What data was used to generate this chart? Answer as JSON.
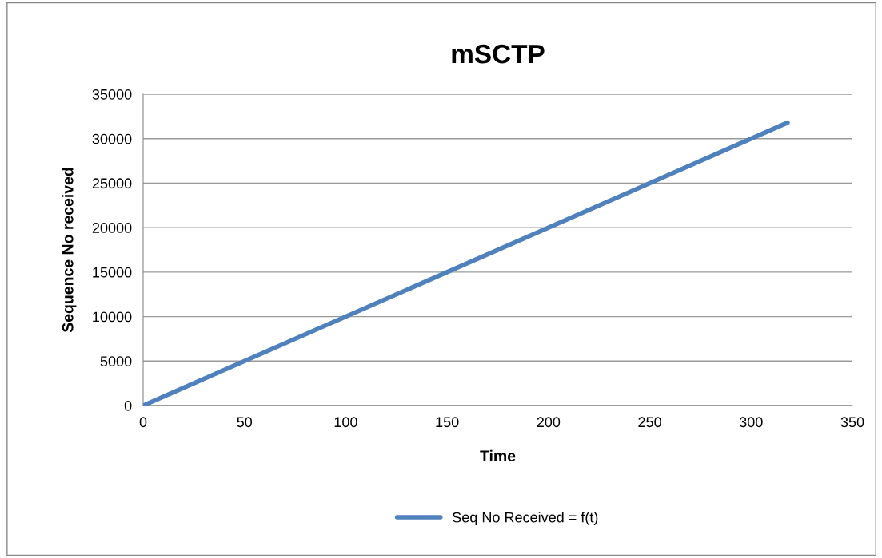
{
  "chart_data": {
    "type": "line",
    "title": "mSCTP",
    "xlabel": "Time",
    "ylabel": "Sequence No received",
    "x": [
      0,
      318
    ],
    "series": [
      {
        "name": "Seq No Received = f(t)",
        "color": "#4f81bd",
        "values": [
          0,
          31800
        ]
      }
    ],
    "xlim": [
      0,
      350
    ],
    "xticks": [
      0,
      50,
      100,
      150,
      200,
      250,
      300,
      350
    ],
    "ylim": [
      0,
      35000
    ],
    "yticks": [
      0,
      5000,
      10000,
      15000,
      20000,
      25000,
      30000,
      35000
    ],
    "grid": "y",
    "legend": "bottom",
    "marker": "none",
    "line_style": "solid"
  }
}
